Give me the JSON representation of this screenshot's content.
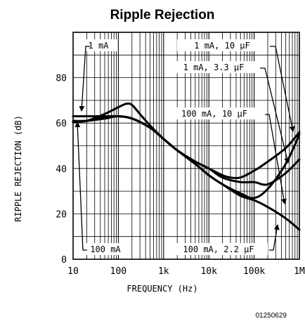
{
  "chart_data": {
    "type": "line",
    "title": "Ripple Rejection",
    "xlabel": "FREQUENCY (Hz)",
    "ylabel": "RIPPLE REJECTION (dB)",
    "x_scale": "log",
    "xlim": [
      10,
      1000000
    ],
    "ylim": [
      0,
      100
    ],
    "grid": true,
    "x_ticks": [
      {
        "value": 10,
        "label": "10"
      },
      {
        "value": 100,
        "label": "100"
      },
      {
        "value": 1000,
        "label": "1k"
      },
      {
        "value": 10000,
        "label": "10k"
      },
      {
        "value": 100000,
        "label": "100k"
      },
      {
        "value": 1000000,
        "label": "1M"
      }
    ],
    "y_ticks": [
      {
        "value": 0,
        "label": "0"
      },
      {
        "value": 20,
        "label": "20"
      },
      {
        "value": 40,
        "label": "40"
      },
      {
        "value": 60,
        "label": "60"
      },
      {
        "value": 80,
        "label": "80"
      }
    ],
    "series": [
      {
        "name": "1 mA, 10 µF",
        "x": [
          10,
          20,
          50,
          100,
          200,
          500,
          1000,
          2000,
          5000,
          10000,
          20000,
          50000,
          100000,
          200000,
          500000,
          1000000
        ],
        "y": [
          63,
          63,
          63,
          63,
          62,
          58,
          53,
          48,
          42,
          37,
          33,
          29,
          27,
          31,
          42,
          55
        ]
      },
      {
        "name": "1 mA, 3.3 µF",
        "x": [
          10,
          20,
          50,
          100,
          200,
          500,
          1000,
          2000,
          5000,
          10000,
          20000,
          50000,
          100000,
          200000,
          500000,
          1000000
        ],
        "y": [
          61,
          61,
          62,
          63,
          62,
          58,
          53,
          48,
          43,
          40,
          36,
          34,
          34,
          33,
          38,
          44
        ]
      },
      {
        "name": "100 mA, 10 µF",
        "x": [
          10,
          20,
          50,
          100,
          150,
          200,
          300,
          500,
          1000,
          2000,
          5000,
          10000,
          20000,
          30000,
          50000,
          100000,
          200000,
          500000,
          1000000
        ],
        "y": [
          60.5,
          61,
          64,
          67,
          68.5,
          68,
          64,
          59,
          53,
          48,
          43,
          40,
          37,
          36,
          36,
          39,
          43,
          49,
          56
        ]
      },
      {
        "name": "100 mA, 2.2 µF",
        "x": [
          10,
          20,
          50,
          100,
          200,
          500,
          1000,
          2000,
          5000,
          10000,
          20000,
          50000,
          100000,
          200000,
          500000,
          1000000
        ],
        "y": [
          60.5,
          61,
          62.5,
          63,
          62,
          58,
          53,
          48,
          42,
          37,
          33,
          28,
          26,
          23,
          18,
          13
        ]
      }
    ],
    "annotations": [
      {
        "text": "1 mA"
      },
      {
        "text": "1 mA, 10 µF"
      },
      {
        "text": "1 mA, 3.3 µF"
      },
      {
        "text": "100 mA, 10 µF"
      },
      {
        "text": "100 mA"
      },
      {
        "text": "100 mA, 2.2 µF"
      }
    ],
    "figure_id": "01250629"
  }
}
